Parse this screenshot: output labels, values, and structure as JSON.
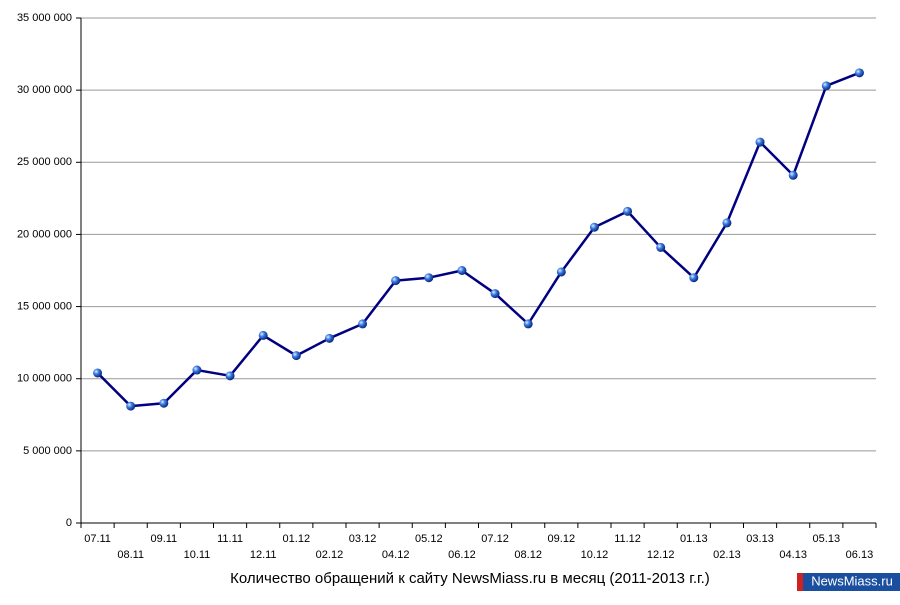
{
  "chart_data": {
    "type": "line",
    "title": "Количество обращений к сайту NewsMiass.ru в месяц (2011-2013 г.г.)",
    "watermark": "NewsMiass.ru",
    "categories": [
      "07.11",
      "08.11",
      "09.11",
      "10.11",
      "11.11",
      "12.11",
      "01.12",
      "02.12",
      "03.12",
      "04.12",
      "05.12",
      "06.12",
      "07.12",
      "08.12",
      "09.12",
      "10.12",
      "11.12",
      "12.12",
      "01.13",
      "02.13",
      "03.13",
      "04.13",
      "05.13",
      "06.13"
    ],
    "series": [
      {
        "name": "Количество обращений",
        "color": "#000080",
        "values": [
          10400000,
          8100000,
          8300000,
          10600000,
          10200000,
          13000000,
          11600000,
          12800000,
          13800000,
          16800000,
          17000000,
          17500000,
          15900000,
          13800000,
          17400000,
          20500000,
          21600000,
          19100000,
          17000000,
          20800000,
          26400000,
          24100000,
          30300000,
          31200000
        ]
      }
    ],
    "ylim": [
      0,
      35000000
    ],
    "yticks": [
      0,
      {
        "value": 5000000,
        "label": "5 000 000"
      },
      {
        "value": 10000000,
        "label": "10 000 000"
      },
      {
        "value": 15000000,
        "label": "15 000 000"
      },
      {
        "value": 20000000,
        "label": "20 000 000"
      },
      {
        "value": 25000000,
        "label": "25 000 000"
      },
      {
        "value": 30000000,
        "label": "30 000 000"
      },
      {
        "value": 35000000,
        "label": "35 000 000"
      }
    ],
    "grid": true,
    "marker_color": "#3a78e0"
  }
}
